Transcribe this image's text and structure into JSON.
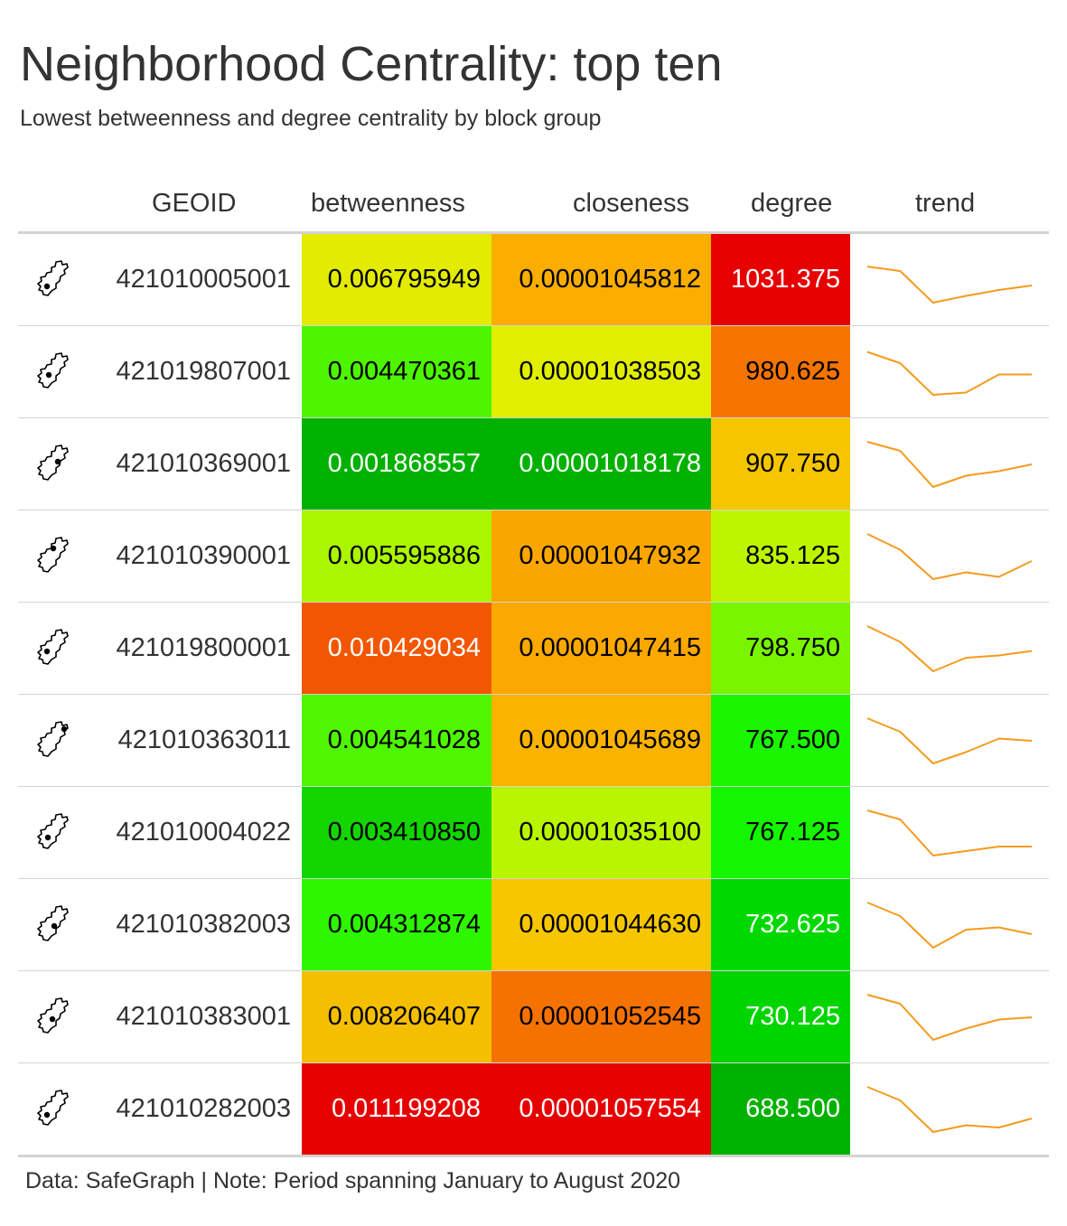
{
  "title": "Neighborhood Centrality: top ten",
  "subtitle": "Lowest betweenness and degree centrality by block group",
  "footer": "Data: SafeGraph | Note: Period spanning January to August 2020",
  "columns": {
    "map": "",
    "geoid": "GEOID",
    "betweenness": "betweenness",
    "closeness": "closeness",
    "degree": "degree",
    "trend": "trend"
  },
  "colors": {
    "trend_line": "#F59B1E",
    "rule": "#D3D3D3"
  },
  "icon": "block-group-map-icon",
  "chart_data": {
    "type": "table",
    "title": "Neighborhood Centrality: top ten",
    "subtitle": "Lowest betweenness and degree centrality by block group",
    "rows": [
      {
        "geoid": "421010005001",
        "betweenness": "0.006795949",
        "closeness": "0.00001045812",
        "degree": "1031.375",
        "betweenness_color": "#E2EB00",
        "closeness_color": "#FBAE00",
        "degree_color": "#E60000",
        "betweenness_text": "#000000",
        "closeness_text": "#000000",
        "degree_text": "#FFFFFF",
        "trend": [
          0.2,
          0.3,
          1.0,
          0.85,
          0.72,
          0.62
        ]
      },
      {
        "geoid": "421019807001",
        "betweenness": "0.004470361",
        "closeness": "0.00001038503",
        "degree": "980.625",
        "betweenness_color": "#4EF500",
        "closeness_color": "#E1EE00",
        "degree_color": "#F57400",
        "betweenness_text": "#000000",
        "closeness_text": "#000000",
        "degree_text": "#000000",
        "trend": [
          0.05,
          0.3,
          1.0,
          0.95,
          0.55,
          0.55
        ]
      },
      {
        "geoid": "421010369001",
        "betweenness": "0.001868557",
        "closeness": "0.00001018178",
        "degree": "907.750",
        "betweenness_color": "#00B100",
        "closeness_color": "#00B100",
        "degree_color": "#F5C500",
        "betweenness_text": "#FFFFFF",
        "closeness_text": "#FFFFFF",
        "degree_text": "#000000",
        "trend": [
          0.0,
          0.2,
          1.0,
          0.75,
          0.65,
          0.5
        ]
      },
      {
        "geoid": "421010390001",
        "betweenness": "0.005595886",
        "closeness": "0.00001047932",
        "degree": "835.125",
        "betweenness_color": "#AAF500",
        "closeness_color": "#FBA600",
        "degree_color": "#BDF500",
        "betweenness_text": "#000000",
        "closeness_text": "#000000",
        "degree_text": "#000000",
        "trend": [
          0.0,
          0.35,
          1.0,
          0.85,
          0.95,
          0.6
        ]
      },
      {
        "geoid": "421019800001",
        "betweenness": "0.010429034",
        "closeness": "0.00001047415",
        "degree": "798.750",
        "betweenness_color": "#F35600",
        "closeness_color": "#FBA800",
        "degree_color": "#79F500",
        "betweenness_text": "#FFFFFF",
        "closeness_text": "#000000",
        "degree_text": "#000000",
        "trend": [
          0.0,
          0.35,
          1.0,
          0.7,
          0.65,
          0.55
        ]
      },
      {
        "geoid": "421010363011",
        "betweenness": "0.004541028",
        "closeness": "0.00001045689",
        "degree": "767.500",
        "betweenness_color": "#50F500",
        "closeness_color": "#FBB300",
        "degree_color": "#1AF500",
        "betweenness_text": "#000000",
        "closeness_text": "#000000",
        "degree_text": "#000000",
        "trend": [
          0.0,
          0.3,
          1.0,
          0.75,
          0.45,
          0.5
        ]
      },
      {
        "geoid": "421010004022",
        "betweenness": "0.003410850",
        "closeness": "0.00001035100",
        "degree": "767.125",
        "betweenness_color": "#13D500",
        "closeness_color": "#B9F500",
        "degree_color": "#15F500",
        "betweenness_text": "#000000",
        "closeness_text": "#000000",
        "degree_text": "#000000",
        "trend": [
          0.0,
          0.2,
          1.0,
          0.9,
          0.8,
          0.8
        ]
      },
      {
        "geoid": "421010382003",
        "betweenness": "0.004312874",
        "closeness": "0.00001044630",
        "degree": "732.625",
        "betweenness_color": "#2EF500",
        "closeness_color": "#F6C600",
        "degree_color": "#00D900",
        "betweenness_text": "#000000",
        "closeness_text": "#000000",
        "degree_text": "#FFFFFF",
        "trend": [
          0.0,
          0.3,
          1.0,
          0.6,
          0.55,
          0.7
        ]
      },
      {
        "geoid": "421010383001",
        "betweenness": "0.008206407",
        "closeness": "0.00001052545",
        "degree": "730.125",
        "betweenness_color": "#F5BF00",
        "closeness_color": "#F57200",
        "degree_color": "#00D500",
        "betweenness_text": "#000000",
        "closeness_text": "#000000",
        "degree_text": "#FFFFFF",
        "trend": [
          0.0,
          0.2,
          1.0,
          0.75,
          0.55,
          0.5
        ]
      },
      {
        "geoid": "421010282003",
        "betweenness": "0.011199208",
        "closeness": "0.00001057554",
        "degree": "688.500",
        "betweenness_color": "#E60000",
        "closeness_color": "#E60000",
        "degree_color": "#00B100",
        "betweenness_text": "#FFFFFF",
        "closeness_text": "#FFFFFF",
        "degree_text": "#FFFFFF",
        "trend": [
          0.0,
          0.3,
          1.0,
          0.85,
          0.9,
          0.7
        ]
      }
    ]
  }
}
